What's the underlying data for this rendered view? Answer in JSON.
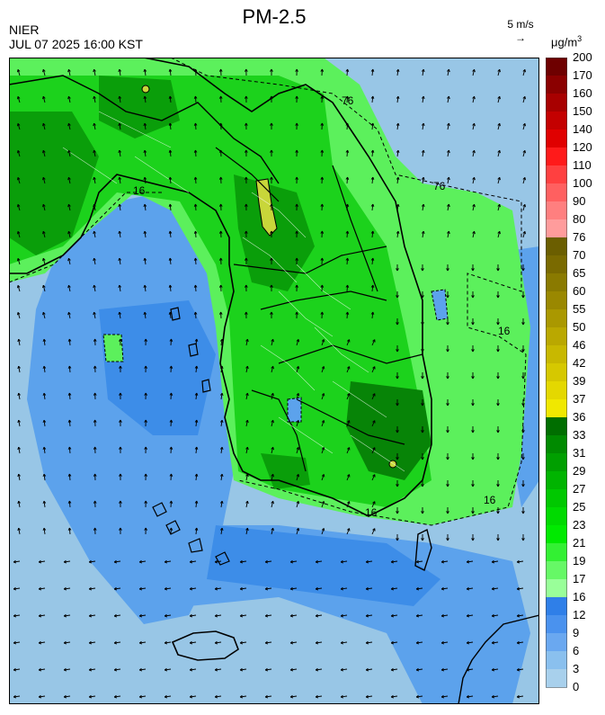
{
  "header": {
    "title": "PM-2.5",
    "organization": "NIER",
    "datetime": "JUL 07 2025 16:00 KST",
    "wind_reference": "5 m/s",
    "unit_base": "μg/m",
    "unit_exp": "3"
  },
  "contour_labels": [
    "76",
    "16",
    "76",
    "16",
    "16",
    "16"
  ],
  "colorbar": {
    "ticks": [
      "200",
      "170",
      "160",
      "150",
      "140",
      "120",
      "110",
      "100",
      "90",
      "80",
      "76",
      "70",
      "65",
      "60",
      "55",
      "50",
      "46",
      "42",
      "39",
      "37",
      "36",
      "33",
      "31",
      "29",
      "27",
      "25",
      "23",
      "21",
      "19",
      "17",
      "16",
      "12",
      "9",
      "6",
      "3",
      "0"
    ],
    "colors": [
      "#6e0000",
      "#8b0000",
      "#a80000",
      "#c40000",
      "#e00000",
      "#ff1a1a",
      "#ff4040",
      "#ff6060",
      "#ff7f7f",
      "#ff9c9c",
      "#6b5e00",
      "#7a6a00",
      "#8a7a00",
      "#9a8800",
      "#aa9800",
      "#baa800",
      "#c8b800",
      "#d6c800",
      "#e4d800",
      "#f0e800",
      "#006e00",
      "#008a00",
      "#009f00",
      "#00b400",
      "#00c800",
      "#00da00",
      "#00ea00",
      "#33f033",
      "#66f866",
      "#99ff99",
      "#2f7fe8",
      "#4a92ee",
      "#6aa8f0",
      "#8ac0ee",
      "#a8d0ec"
    ]
  },
  "map_colors": {
    "sea_light": "#98c6e6",
    "sea_mid": "#5ca2ec",
    "sea_blue": "#3d8de8",
    "land_light": "#5cf05c",
    "land_green": "#1cd21c",
    "land_dark": "#0a9e0a",
    "land_darker": "#078407",
    "hotspot": "#c8d63a"
  }
}
